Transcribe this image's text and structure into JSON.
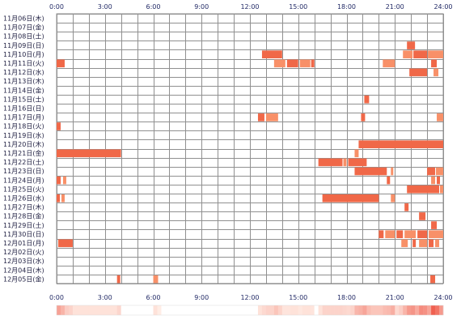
{
  "chart_data": {
    "type": "heatmap",
    "title": "",
    "xlabel": "",
    "ylabel": "",
    "x_ticks": [
      "0:00",
      "3:00",
      "6:00",
      "9:00",
      "12:00",
      "15:00",
      "18:00",
      "21:00",
      "24:00"
    ],
    "xlim_hours": [
      0,
      24
    ],
    "grid": true,
    "colors": {
      "block": "#f06848",
      "block_light": "#f89068",
      "grid": "#909090",
      "summary_light": "#fff0e8",
      "summary_dark": "#f06050"
    },
    "rows": [
      {
        "date": "11月06日(木)",
        "blocks": []
      },
      {
        "date": "11月07日(金)",
        "blocks": []
      },
      {
        "date": "11月08日(土)",
        "blocks": []
      },
      {
        "date": "11月09日(日)",
        "blocks": [
          [
            21.75,
            22.25
          ]
        ]
      },
      {
        "date": "11月10日(月)",
        "blocks": [
          [
            12.75,
            14.0
          ],
          [
            21.5,
            22.1
          ],
          [
            22.15,
            23.0
          ],
          [
            23.05,
            24.0
          ]
        ]
      },
      {
        "date": "11月11日(火)",
        "blocks": [
          [
            0.0,
            0.5
          ],
          [
            13.5,
            14.2
          ],
          [
            14.3,
            15.0
          ],
          [
            15.1,
            15.75
          ],
          [
            15.8,
            16.0
          ],
          [
            20.25,
            21.0
          ],
          [
            23.25,
            23.6
          ]
        ]
      },
      {
        "date": "11月12日(水)",
        "blocks": [
          [
            21.9,
            23.0
          ],
          [
            23.4,
            23.7
          ]
        ]
      },
      {
        "date": "11月13日(木)",
        "blocks": []
      },
      {
        "date": "11月14日(金)",
        "blocks": []
      },
      {
        "date": "11月15日(土)",
        "blocks": [
          [
            19.1,
            19.4
          ]
        ]
      },
      {
        "date": "11月16日(日)",
        "blocks": []
      },
      {
        "date": "11月17日(月)",
        "blocks": [
          [
            12.5,
            12.9
          ],
          [
            13.0,
            13.75
          ],
          [
            18.9,
            19.15
          ],
          [
            23.6,
            24.0
          ]
        ]
      },
      {
        "date": "11月18日(火)",
        "blocks": [
          [
            0.0,
            0.25
          ]
        ]
      },
      {
        "date": "11月19日(水)",
        "blocks": []
      },
      {
        "date": "11月20日(木)",
        "blocks": [
          [
            18.75,
            24.0
          ]
        ]
      },
      {
        "date": "11月21日(金)",
        "blocks": [
          [
            0.0,
            4.0
          ],
          [
            18.5,
            18.75
          ]
        ]
      },
      {
        "date": "11月22日(土)",
        "blocks": [
          [
            16.25,
            17.75
          ],
          [
            17.8,
            18.0
          ],
          [
            18.1,
            19.25
          ]
        ]
      },
      {
        "date": "11月23日(日)",
        "blocks": [
          [
            18.5,
            20.5
          ],
          [
            20.75,
            20.9
          ],
          [
            23.0,
            23.5
          ],
          [
            23.55,
            24.0
          ]
        ]
      },
      {
        "date": "11月24日(月)",
        "blocks": [
          [
            0.0,
            0.25
          ],
          [
            0.4,
            0.6
          ],
          [
            20.5,
            20.7
          ],
          [
            23.25,
            23.5
          ],
          [
            23.6,
            23.8
          ]
        ]
      },
      {
        "date": "11月25日(火)",
        "blocks": [
          [
            21.75,
            23.75
          ],
          [
            23.8,
            24.0
          ]
        ]
      },
      {
        "date": "11月26日(水)",
        "blocks": [
          [
            0.0,
            0.2
          ],
          [
            0.3,
            0.5
          ],
          [
            16.5,
            20.0
          ],
          [
            20.75,
            21.0
          ]
        ]
      },
      {
        "date": "11月27日(木)",
        "blocks": [
          [
            21.6,
            21.85
          ]
        ]
      },
      {
        "date": "11月28日(金)",
        "blocks": [
          [
            22.5,
            22.9
          ]
        ]
      },
      {
        "date": "11月29日(土)",
        "blocks": [
          [
            23.25,
            23.6
          ]
        ]
      },
      {
        "date": "11月30日(日)",
        "blocks": [
          [
            20.0,
            20.3
          ],
          [
            20.4,
            21.0
          ],
          [
            21.1,
            21.5
          ],
          [
            21.6,
            22.3
          ],
          [
            22.4,
            23.0
          ],
          [
            23.1,
            24.0
          ]
        ]
      },
      {
        "date": "12月01日(月)",
        "blocks": [
          [
            0.1,
            1.0
          ],
          [
            21.4,
            21.8
          ],
          [
            22.1,
            22.3
          ],
          [
            22.5,
            23.0
          ],
          [
            23.1,
            23.4
          ],
          [
            23.5,
            23.75
          ]
        ]
      },
      {
        "date": "12月02日(火)",
        "blocks": []
      },
      {
        "date": "12月03日(水)",
        "blocks": []
      },
      {
        "date": "12月04日(木)",
        "blocks": []
      },
      {
        "date": "12月05日(金)",
        "blocks": [
          [
            3.75,
            3.95
          ],
          [
            6.0,
            6.3
          ],
          [
            23.2,
            23.5
          ]
        ]
      }
    ]
  }
}
